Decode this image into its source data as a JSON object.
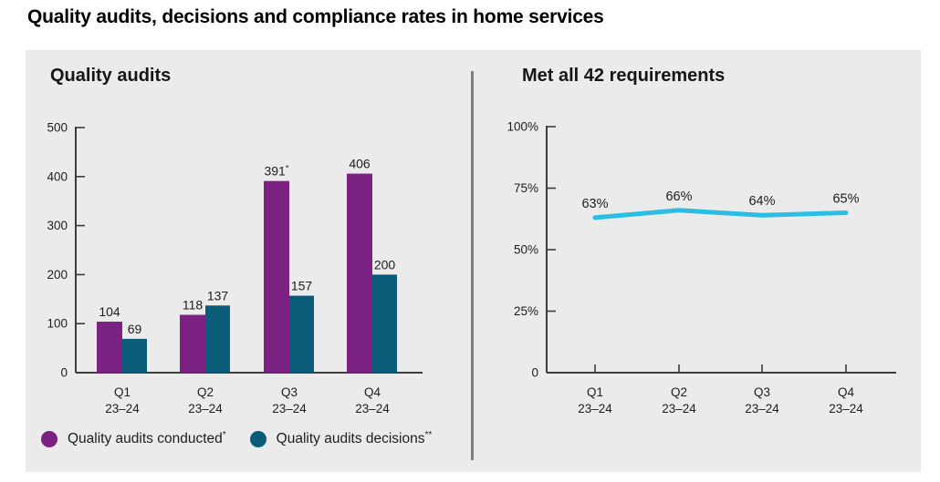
{
  "title": "Quality audits, decisions and compliance rates in home services",
  "colors": {
    "purple": "#7b2182",
    "teal": "#0a5c78",
    "cyan": "#2bbee4",
    "panel_bg": "#ebebeb",
    "axis": "#3c3c3b",
    "text": "#1d1d1b",
    "divider": "#7f7f7f"
  },
  "chart_data": [
    {
      "type": "bar",
      "title": "Quality audits",
      "categories": [
        {
          "line1": "Q1",
          "line2": "23–24"
        },
        {
          "line1": "Q2",
          "line2": "23–24"
        },
        {
          "line1": "Q3",
          "line2": "23–24"
        },
        {
          "line1": "Q4",
          "line2": "23–24"
        }
      ],
      "series": [
        {
          "name": "Quality audits conducted",
          "name_sup": "*",
          "color_key": "purple",
          "values": [
            104,
            118,
            391,
            406
          ],
          "value_labels": [
            {
              "text": "104",
              "sup": ""
            },
            {
              "text": "118",
              "sup": ""
            },
            {
              "text": "391",
              "sup": "*"
            },
            {
              "text": "406",
              "sup": ""
            }
          ]
        },
        {
          "name": "Quality audits decisions",
          "name_sup": "**",
          "color_key": "teal",
          "values": [
            69,
            137,
            157,
            200
          ],
          "value_labels": [
            {
              "text": "69",
              "sup": ""
            },
            {
              "text": "137",
              "sup": ""
            },
            {
              "text": "157",
              "sup": ""
            },
            {
              "text": "200",
              "sup": ""
            }
          ]
        }
      ],
      "ylim": [
        0,
        500
      ],
      "yticks": [
        {
          "v": 0,
          "label": "0"
        },
        {
          "v": 100,
          "label": "100"
        },
        {
          "v": 200,
          "label": "200"
        },
        {
          "v": 300,
          "label": "300"
        },
        {
          "v": 400,
          "label": "400"
        },
        {
          "v": 500,
          "label": "500"
        }
      ],
      "grid": false,
      "legend_position": "bottom-left"
    },
    {
      "type": "line",
      "title": "Met all 42 requirements",
      "categories": [
        {
          "line1": "Q1",
          "line2": "23–24"
        },
        {
          "line1": "Q2",
          "line2": "23–24"
        },
        {
          "line1": "Q3",
          "line2": "23–24"
        },
        {
          "line1": "Q4",
          "line2": "23–24"
        }
      ],
      "values": [
        63,
        66,
        64,
        65
      ],
      "point_labels": [
        "63%",
        "66%",
        "64%",
        "65%"
      ],
      "ylim": [
        0,
        100
      ],
      "yticks": [
        {
          "v": 0,
          "label": "0"
        },
        {
          "v": 25,
          "label": "25%"
        },
        {
          "v": 50,
          "label": "50%"
        },
        {
          "v": 75,
          "label": "75%"
        },
        {
          "v": 100,
          "label": "100%"
        }
      ],
      "grid": false
    }
  ],
  "legend": {
    "items": [
      {
        "label": "Quality audits conducted",
        "sup": "*",
        "color_key": "purple"
      },
      {
        "label": "Quality audits decisions",
        "sup": "**",
        "color_key": "teal"
      }
    ]
  }
}
